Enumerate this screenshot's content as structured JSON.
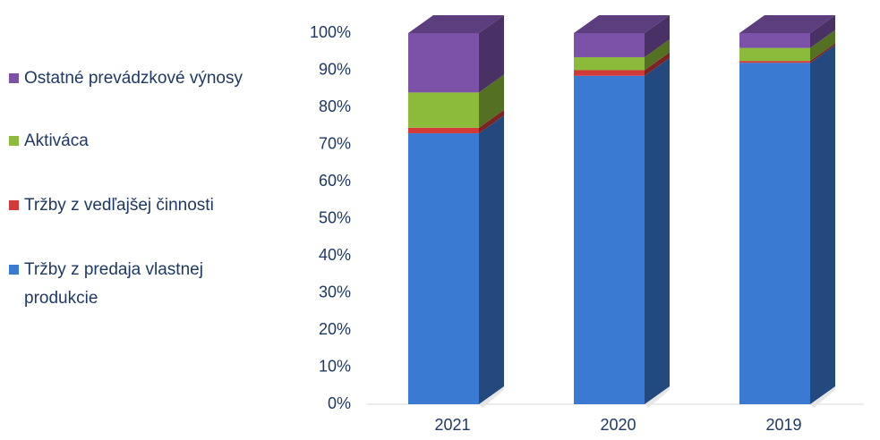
{
  "chart_data": {
    "type": "bar3d_stacked",
    "categories": [
      "2021",
      "2020",
      "2019"
    ],
    "series": [
      {
        "name": "Tržby z predaja vlastnej produkcie",
        "color": "#3b7ad2",
        "values": [
          73,
          88.5,
          92
        ]
      },
      {
        "name": "Tržby z vedľajšej činnosti",
        "color": "#d23a3a",
        "values": [
          1.5,
          1.5,
          0.5
        ]
      },
      {
        "name": "Aktiváca",
        "color": "#8cba3a",
        "values": [
          9.5,
          3.5,
          3.5
        ]
      },
      {
        "name": "Ostatné prevádzkové výnosy",
        "color": "#7b52a8",
        "values": [
          16,
          6.5,
          4
        ]
      }
    ],
    "ylim": [
      0,
      100
    ],
    "yticks": [
      {
        "value": 0,
        "label": "0%"
      },
      {
        "value": 10,
        "label": "10%"
      },
      {
        "value": 20,
        "label": "20%"
      },
      {
        "value": 30,
        "label": "30%"
      },
      {
        "value": 40,
        "label": "40%"
      },
      {
        "value": 50,
        "label": "50%"
      },
      {
        "value": 60,
        "label": "60%"
      },
      {
        "value": 70,
        "label": "70%"
      },
      {
        "value": 80,
        "label": "80%"
      },
      {
        "value": 90,
        "label": "90%"
      },
      {
        "value": 100,
        "label": "100%"
      }
    ],
    "legend": "left"
  }
}
